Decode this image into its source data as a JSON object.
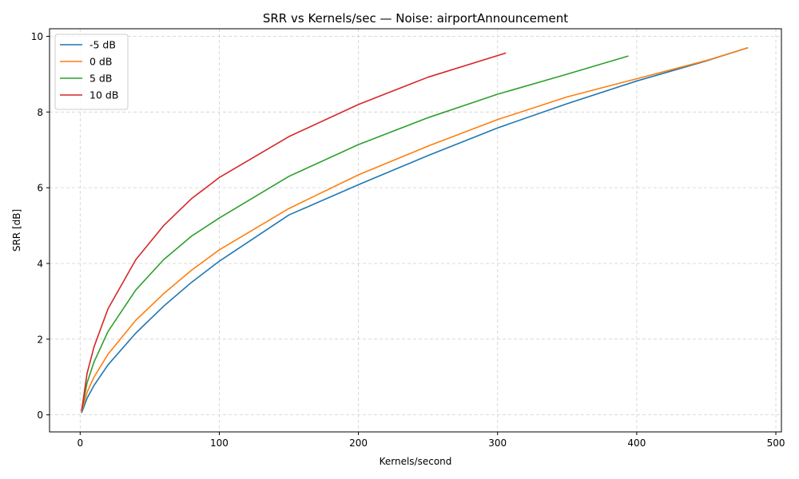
{
  "chart_data": {
    "type": "line",
    "title": "SRR vs Kernels/sec — Noise: airportAnnouncement",
    "xlabel": "Kernels/second",
    "ylabel": "SRR [dB]",
    "xlim": [
      -22,
      504
    ],
    "ylim": [
      -0.45,
      10.2
    ],
    "xticks": [
      0,
      100,
      200,
      300,
      400,
      500
    ],
    "yticks": [
      0,
      2,
      4,
      6,
      8,
      10
    ],
    "grid": true,
    "legend_position": "upper-left",
    "series": [
      {
        "name": "-5 dB",
        "color": "#1f77b4",
        "points": [
          [
            1,
            0.05
          ],
          [
            5,
            0.44
          ],
          [
            10,
            0.78
          ],
          [
            20,
            1.32
          ],
          [
            40,
            2.16
          ],
          [
            60,
            2.87
          ],
          [
            80,
            3.5
          ],
          [
            100,
            4.06
          ],
          [
            150,
            5.28
          ],
          [
            200,
            6.08
          ],
          [
            250,
            6.85
          ],
          [
            300,
            7.58
          ],
          [
            350,
            8.22
          ],
          [
            400,
            8.82
          ],
          [
            450,
            9.35
          ],
          [
            480,
            9.7
          ]
        ]
      },
      {
        "name": "0 dB",
        "color": "#ff7f0e",
        "points": [
          [
            1,
            0.08
          ],
          [
            5,
            0.6
          ],
          [
            10,
            1.0
          ],
          [
            20,
            1.6
          ],
          [
            40,
            2.5
          ],
          [
            60,
            3.2
          ],
          [
            80,
            3.82
          ],
          [
            100,
            4.36
          ],
          [
            150,
            5.45
          ],
          [
            200,
            6.34
          ],
          [
            250,
            7.1
          ],
          [
            300,
            7.8
          ],
          [
            350,
            8.4
          ],
          [
            400,
            8.88
          ],
          [
            450,
            9.36
          ],
          [
            480,
            9.7
          ]
        ]
      },
      {
        "name": "5 dB",
        "color": "#2ca02c",
        "points": [
          [
            1,
            0.1
          ],
          [
            5,
            0.85
          ],
          [
            10,
            1.4
          ],
          [
            20,
            2.2
          ],
          [
            40,
            3.3
          ],
          [
            60,
            4.1
          ],
          [
            80,
            4.72
          ],
          [
            100,
            5.2
          ],
          [
            150,
            6.3
          ],
          [
            200,
            7.14
          ],
          [
            250,
            7.85
          ],
          [
            300,
            8.47
          ],
          [
            350,
            9.0
          ],
          [
            394,
            9.48
          ]
        ]
      },
      {
        "name": "10 dB",
        "color": "#d62728",
        "points": [
          [
            1,
            0.1
          ],
          [
            5,
            1.1
          ],
          [
            10,
            1.8
          ],
          [
            20,
            2.8
          ],
          [
            40,
            4.1
          ],
          [
            60,
            5.0
          ],
          [
            80,
            5.71
          ],
          [
            100,
            6.27
          ],
          [
            150,
            7.35
          ],
          [
            200,
            8.2
          ],
          [
            250,
            8.92
          ],
          [
            306,
            9.56
          ]
        ]
      }
    ]
  }
}
